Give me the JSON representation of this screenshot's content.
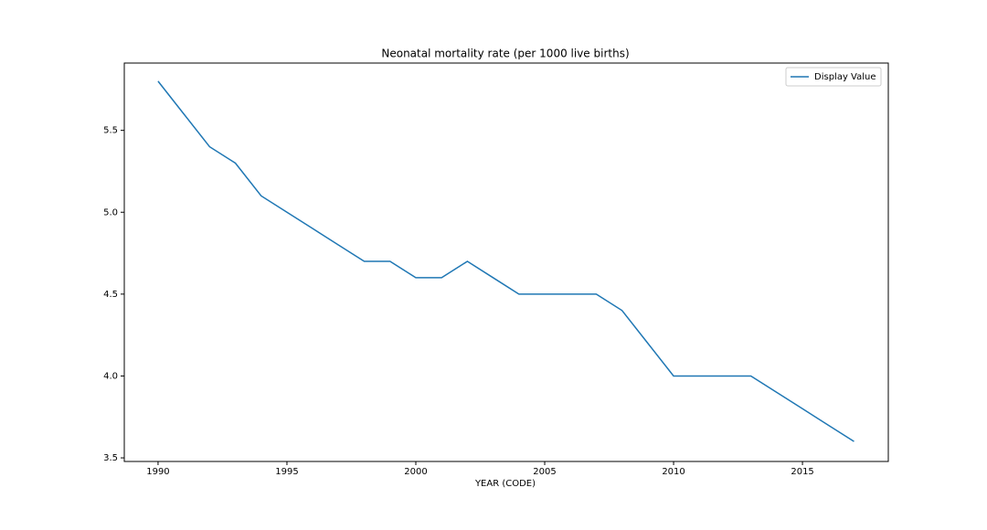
{
  "chart_data": {
    "type": "line",
    "title": "Neonatal mortality rate (per 1000 live births)",
    "x_label": "YEAR (CODE)",
    "x": [
      1990,
      1991,
      1992,
      1993,
      1994,
      1995,
      1996,
      1997,
      1998,
      1999,
      2000,
      2001,
      2002,
      2003,
      2004,
      2005,
      2006,
      2007,
      2008,
      2009,
      2010,
      2011,
      2012,
      2013,
      2014,
      2015,
      2016,
      2017
    ],
    "series": [
      {
        "name": "Display Value",
        "color": "#1f77b4",
        "values": [
          5.8,
          5.6,
          5.4,
          5.3,
          5.1,
          5.0,
          4.9,
          4.8,
          4.7,
          4.7,
          4.6,
          4.6,
          4.7,
          4.6,
          4.5,
          4.5,
          4.5,
          4.5,
          4.4,
          4.2,
          4.0,
          4.0,
          4.0,
          4.0,
          3.9,
          3.8,
          3.7,
          3.6
        ]
      }
    ],
    "xlim": [
      1988.69,
      2018.33
    ],
    "xticks": [
      1990,
      1995,
      2000,
      2005,
      2010,
      2015
    ],
    "ylim": [
      3.478,
      5.911
    ],
    "yticks": [
      3.5,
      {
        "value": 4,
        "label": "4.0"
      },
      4.5,
      {
        "value": 5,
        "label": "5.0"
      },
      5.5
    ],
    "grid": false,
    "legend": "upper right"
  }
}
